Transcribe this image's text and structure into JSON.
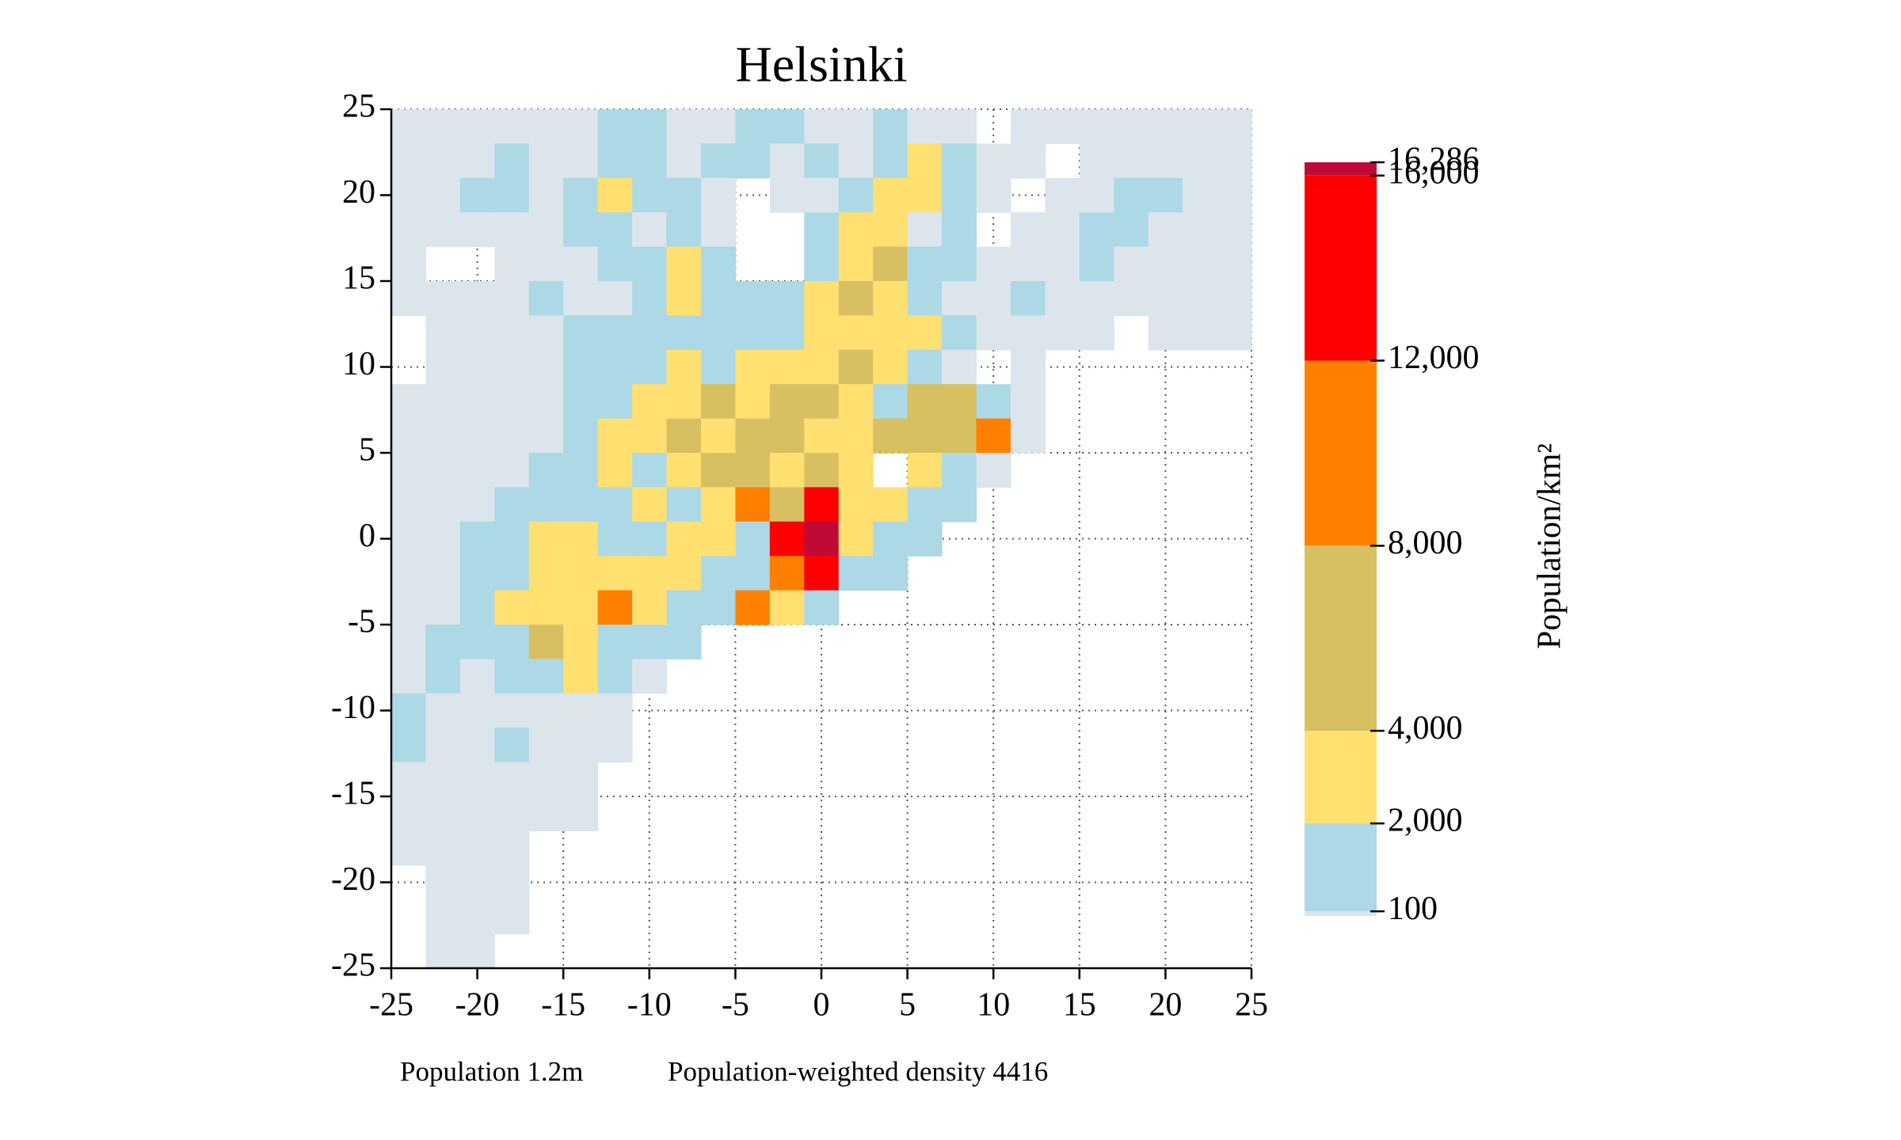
{
  "chart_data": {
    "type": "heatmap",
    "title": "Helsinki",
    "xlim": [
      -25,
      25
    ],
    "ylim": [
      -25,
      25
    ],
    "xticks": [
      -25,
      -20,
      -15,
      -10,
      -5,
      0,
      5,
      10,
      15,
      20,
      25
    ],
    "yticks": [
      -25,
      -20,
      -15,
      -10,
      -5,
      0,
      5,
      10,
      15,
      20,
      25
    ],
    "grid": true,
    "values": [
      [
        50,
        50,
        50,
        50,
        50,
        50,
        1000,
        1000,
        50,
        50,
        1000,
        1000,
        50,
        50,
        1000,
        50,
        50,
        null,
        50,
        50,
        50,
        50,
        50,
        50,
        50
      ],
      [
        50,
        50,
        50,
        1000,
        50,
        50,
        1000,
        1000,
        50,
        1000,
        1000,
        50,
        1000,
        50,
        1000,
        3000,
        1000,
        50,
        50,
        null,
        50,
        50,
        50,
        50,
        50
      ],
      [
        50,
        50,
        1000,
        1000,
        50,
        1000,
        3000,
        1000,
        1000,
        50,
        null,
        50,
        50,
        1000,
        3000,
        3000,
        1000,
        50,
        null,
        50,
        50,
        1000,
        1000,
        50,
        50
      ],
      [
        50,
        50,
        50,
        50,
        50,
        1000,
        1000,
        50,
        1000,
        50,
        null,
        null,
        1000,
        3000,
        3000,
        50,
        1000,
        null,
        50,
        50,
        1000,
        1000,
        50,
        50,
        50
      ],
      [
        50,
        null,
        null,
        50,
        50,
        50,
        1000,
        1000,
        3000,
        1000,
        null,
        null,
        1000,
        3000,
        6000,
        1000,
        1000,
        50,
        50,
        50,
        1000,
        50,
        50,
        50,
        50
      ],
      [
        50,
        50,
        50,
        50,
        1000,
        50,
        50,
        1000,
        3000,
        1000,
        1000,
        1000,
        3000,
        6000,
        3000,
        1000,
        50,
        50,
        1000,
        50,
        50,
        50,
        50,
        50,
        50
      ],
      [
        null,
        50,
        50,
        50,
        50,
        1000,
        1000,
        1000,
        1000,
        1000,
        1000,
        1000,
        3000,
        3000,
        3000,
        3000,
        1000,
        50,
        50,
        50,
        50,
        null,
        50,
        50,
        50
      ],
      [
        null,
        50,
        50,
        50,
        50,
        1000,
        1000,
        1000,
        3000,
        1000,
        3000,
        3000,
        3000,
        6000,
        3000,
        1000,
        50,
        null,
        50,
        null,
        null,
        null,
        null,
        null,
        null
      ],
      [
        50,
        50,
        50,
        50,
        50,
        1000,
        1000,
        3000,
        3000,
        6000,
        3000,
        6000,
        6000,
        3000,
        1000,
        6000,
        6000,
        1000,
        50,
        null,
        null,
        null,
        null,
        null,
        null
      ],
      [
        50,
        50,
        50,
        50,
        50,
        1000,
        3000,
        3000,
        6000,
        3000,
        6000,
        6000,
        3000,
        3000,
        6000,
        6000,
        6000,
        10000,
        50,
        null,
        null,
        null,
        null,
        null,
        null
      ],
      [
        50,
        50,
        50,
        50,
        1000,
        1000,
        3000,
        1000,
        3000,
        6000,
        6000,
        3000,
        6000,
        3000,
        null,
        3000,
        1000,
        50,
        null,
        null,
        null,
        null,
        null,
        null,
        null
      ],
      [
        50,
        50,
        50,
        1000,
        1000,
        1000,
        1000,
        3000,
        1000,
        3000,
        10000,
        6000,
        14000,
        3000,
        3000,
        1000,
        1000,
        null,
        null,
        null,
        null,
        null,
        null,
        null,
        null
      ],
      [
        50,
        50,
        1000,
        1000,
        3000,
        3000,
        1000,
        1000,
        3000,
        3000,
        1000,
        14000,
        16286,
        3000,
        1000,
        1000,
        null,
        null,
        null,
        null,
        null,
        null,
        null,
        null,
        null
      ],
      [
        50,
        50,
        1000,
        1000,
        3000,
        3000,
        3000,
        3000,
        3000,
        1000,
        1000,
        10000,
        14000,
        1000,
        1000,
        null,
        null,
        null,
        null,
        null,
        null,
        null,
        null,
        null,
        null
      ],
      [
        50,
        50,
        1000,
        3000,
        3000,
        3000,
        10000,
        3000,
        1000,
        1000,
        10000,
        3000,
        1000,
        null,
        null,
        null,
        null,
        null,
        null,
        null,
        null,
        null,
        null,
        null,
        null
      ],
      [
        50,
        1000,
        1000,
        1000,
        6000,
        3000,
        1000,
        1000,
        1000,
        null,
        null,
        null,
        null,
        null,
        null,
        null,
        null,
        null,
        null,
        null,
        null,
        null,
        null,
        null,
        null
      ],
      [
        50,
        1000,
        50,
        1000,
        1000,
        3000,
        1000,
        50,
        null,
        null,
        null,
        null,
        null,
        null,
        null,
        null,
        null,
        null,
        null,
        null,
        null,
        null,
        null,
        null,
        null
      ],
      [
        1000,
        50,
        50,
        50,
        50,
        50,
        50,
        null,
        null,
        null,
        null,
        null,
        null,
        null,
        null,
        null,
        null,
        null,
        null,
        null,
        null,
        null,
        null,
        null,
        null
      ],
      [
        1000,
        50,
        50,
        1000,
        50,
        50,
        50,
        null,
        null,
        null,
        null,
        null,
        null,
        null,
        null,
        null,
        null,
        null,
        null,
        null,
        null,
        null,
        null,
        null,
        null
      ],
      [
        50,
        50,
        50,
        50,
        50,
        50,
        null,
        null,
        null,
        null,
        null,
        null,
        null,
        null,
        null,
        null,
        null,
        null,
        null,
        null,
        null,
        null,
        null,
        null,
        null
      ],
      [
        50,
        50,
        50,
        50,
        50,
        50,
        null,
        null,
        null,
        null,
        null,
        null,
        null,
        null,
        null,
        null,
        null,
        null,
        null,
        null,
        null,
        null,
        null,
        null,
        null
      ],
      [
        50,
        50,
        50,
        50,
        null,
        null,
        null,
        null,
        null,
        null,
        null,
        null,
        null,
        null,
        null,
        null,
        null,
        null,
        null,
        null,
        null,
        null,
        null,
        null,
        null
      ],
      [
        null,
        50,
        50,
        50,
        null,
        null,
        null,
        null,
        null,
        null,
        null,
        null,
        null,
        null,
        null,
        null,
        null,
        null,
        null,
        null,
        null,
        null,
        null,
        null,
        null
      ],
      [
        null,
        50,
        50,
        50,
        null,
        null,
        null,
        null,
        null,
        null,
        null,
        null,
        null,
        null,
        null,
        null,
        null,
        null,
        null,
        null,
        null,
        null,
        null,
        null,
        null
      ],
      [
        null,
        50,
        50,
        null,
        null,
        null,
        null,
        null,
        null,
        null,
        null,
        null,
        null,
        null,
        null,
        null,
        null,
        null,
        null,
        null,
        null,
        null,
        null,
        null,
        null
      ]
    ],
    "colorbar": {
      "label": "Population/km²",
      "lim": [
        0,
        16286
      ],
      "levels": [
        0,
        100,
        2000,
        4000,
        8000,
        12000,
        16000,
        16286
      ],
      "colors": [
        "#dbe5eb",
        "#add8e6",
        "#ffe070",
        "#d8c062",
        "#ff8000",
        "#ff0000",
        "#c00a36"
      ],
      "ticks": [
        100,
        {
          "value": 2000,
          "label": "2,000"
        },
        {
          "value": 4000,
          "label": "4,000"
        },
        {
          "value": 8000,
          "label": "8,000"
        },
        {
          "value": 12000,
          "label": "12,000"
        },
        {
          "value": 16000,
          "label": "16,000"
        },
        {
          "value": 16286,
          "label": "16,286"
        }
      ]
    },
    "notes": [
      "Population 1.2m",
      "Population-weighted density 4416"
    ]
  }
}
